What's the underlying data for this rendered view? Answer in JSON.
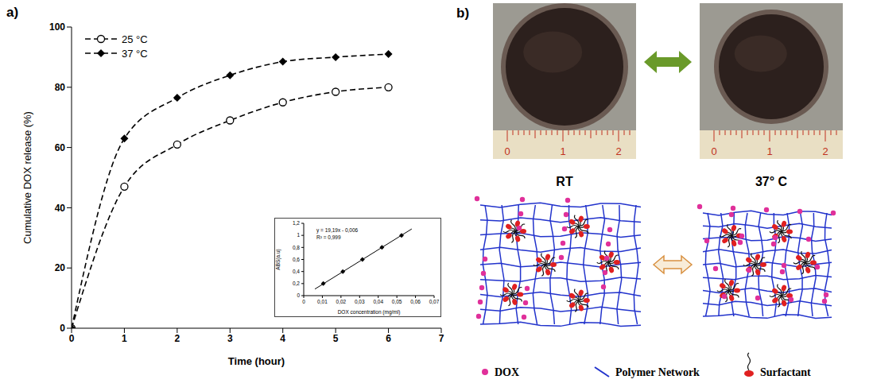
{
  "panel_labels": [
    "a)",
    "b)"
  ],
  "chart_data": [
    {
      "type": "line",
      "x_label": "Time (hour)",
      "y_label": "Cumulative DOX release (%)",
      "x": [
        0,
        1,
        2,
        3,
        4,
        5,
        6
      ],
      "series": [
        {
          "name": "25 °C",
          "color": "#000000",
          "marker": "circle",
          "line_style": "dashed",
          "values": [
            0,
            47,
            61,
            69,
            75,
            78.5,
            80
          ]
        },
        {
          "name": "37 °C",
          "color": "#000000",
          "marker": "diamond",
          "line_style": "dashed",
          "values": [
            0,
            63,
            76.5,
            84,
            88.5,
            90,
            91
          ]
        }
      ],
      "xlim": [
        0,
        7
      ],
      "xticks": [
        0,
        1,
        2,
        3,
        4,
        5,
        6,
        7
      ],
      "ylim": [
        0,
        100
      ],
      "yticks": [
        0,
        20,
        40,
        60,
        80,
        100
      ],
      "legend": "upper left",
      "grid": false
    },
    {
      "type": "scatter",
      "x_label": "DOX concentration (mg/ml)",
      "y_label": "ABS(a.u)",
      "annotations": [
        "y = 19,19x - 0,006",
        "R² = 0,999"
      ],
      "x": [
        0.0105,
        0.021,
        0.0315,
        0.042,
        0.0525
      ],
      "values": [
        0.2,
        0.4,
        0.6,
        0.8,
        1.0
      ],
      "marker": "diamond",
      "color": "#000000",
      "fit": {
        "x": [
          0.006,
          0.058
        ],
        "values": [
          0.109,
          1.107
        ]
      },
      "xlim": [
        0,
        0.07
      ],
      "xticks": [
        0,
        {
          "value": 0.01,
          "label": "0,01"
        },
        {
          "value": 0.02,
          "label": "0,02"
        },
        {
          "value": 0.03,
          "label": "0,03"
        },
        {
          "value": 0.04,
          "label": "0,04"
        },
        {
          "value": 0.05,
          "label": "0,05"
        },
        {
          "value": 0.06,
          "label": "0,06"
        },
        {
          "value": 0.07,
          "label": "0,07"
        }
      ],
      "ylim": [
        0,
        1.2
      ],
      "yticks": [
        0,
        {
          "value": 0.2,
          "label": "0,2"
        },
        {
          "value": 0.4,
          "label": "0,4"
        },
        {
          "value": 0.6,
          "label": "0,6"
        },
        {
          "value": 0.8,
          "label": "0,8"
        },
        1,
        {
          "value": 1.2,
          "label": "1,2"
        }
      ],
      "grid": false
    }
  ],
  "diagram": {
    "photos": [
      {
        "label": "RT"
      },
      {
        "label": "37° C"
      }
    ],
    "ruler_labels": [
      "0",
      "1",
      "2"
    ],
    "legend": [
      {
        "label": "DOX",
        "color": "#e0309a"
      },
      {
        "label": "Polymer Network",
        "color": "#2233cc"
      },
      {
        "label": "Surfactant",
        "color": "#e02020"
      }
    ]
  }
}
